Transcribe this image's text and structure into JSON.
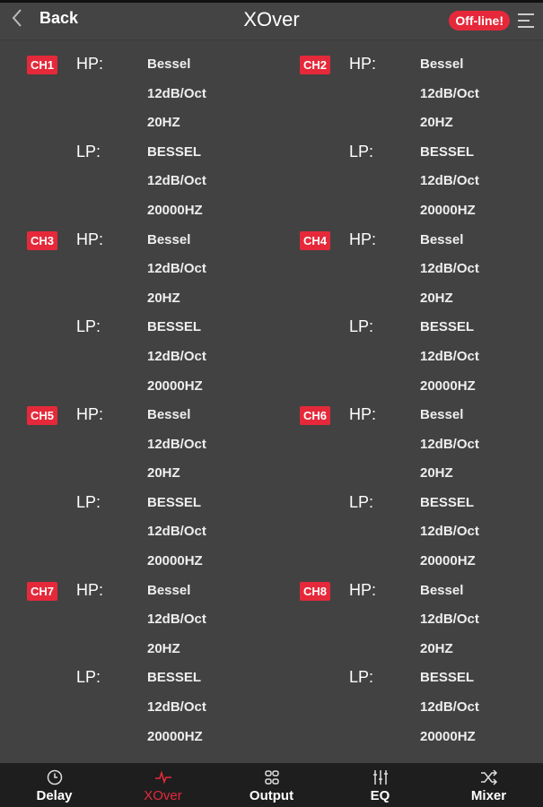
{
  "header": {
    "back_label": "Back",
    "title": "XOver",
    "status": "Off-line!"
  },
  "labels": {
    "hp": "HP:",
    "lp": "LP:"
  },
  "channels": [
    {
      "name": "CH1",
      "hp": {
        "type": "Bessel",
        "slope": "12dB/Oct",
        "freq": "20HZ"
      },
      "lp": {
        "type": "BESSEL",
        "slope": "12dB/Oct",
        "freq": "20000HZ"
      }
    },
    {
      "name": "CH2",
      "hp": {
        "type": "Bessel",
        "slope": "12dB/Oct",
        "freq": "20HZ"
      },
      "lp": {
        "type": "BESSEL",
        "slope": "12dB/Oct",
        "freq": "20000HZ"
      }
    },
    {
      "name": "CH3",
      "hp": {
        "type": "Bessel",
        "slope": "12dB/Oct",
        "freq": "20HZ"
      },
      "lp": {
        "type": "BESSEL",
        "slope": "12dB/Oct",
        "freq": "20000HZ"
      }
    },
    {
      "name": "CH4",
      "hp": {
        "type": "Bessel",
        "slope": "12dB/Oct",
        "freq": "20HZ"
      },
      "lp": {
        "type": "BESSEL",
        "slope": "12dB/Oct",
        "freq": "20000HZ"
      }
    },
    {
      "name": "CH5",
      "hp": {
        "type": "Bessel",
        "slope": "12dB/Oct",
        "freq": "20HZ"
      },
      "lp": {
        "type": "BESSEL",
        "slope": "12dB/Oct",
        "freq": "20000HZ"
      }
    },
    {
      "name": "CH6",
      "hp": {
        "type": "Bessel",
        "slope": "12dB/Oct",
        "freq": "20HZ"
      },
      "lp": {
        "type": "BESSEL",
        "slope": "12dB/Oct",
        "freq": "20000HZ"
      }
    },
    {
      "name": "CH7",
      "hp": {
        "type": "Bessel",
        "slope": "12dB/Oct",
        "freq": "20HZ"
      },
      "lp": {
        "type": "BESSEL",
        "slope": "12dB/Oct",
        "freq": "20000HZ"
      }
    },
    {
      "name": "CH8",
      "hp": {
        "type": "Bessel",
        "slope": "12dB/Oct",
        "freq": "20HZ"
      },
      "lp": {
        "type": "BESSEL",
        "slope": "12dB/Oct",
        "freq": "20000HZ"
      }
    }
  ],
  "tabs": [
    {
      "label": "Delay",
      "icon": "clock-icon"
    },
    {
      "label": "XOver",
      "icon": "pulse-icon",
      "active": true
    },
    {
      "label": "Output",
      "icon": "grid-icon"
    },
    {
      "label": "EQ",
      "icon": "sliders-icon"
    },
    {
      "label": "Mixer",
      "icon": "shuffle-icon"
    }
  ],
  "colors": {
    "accent": "#e5293a",
    "background": "#424242",
    "tabbar": "#1e1e1e"
  }
}
